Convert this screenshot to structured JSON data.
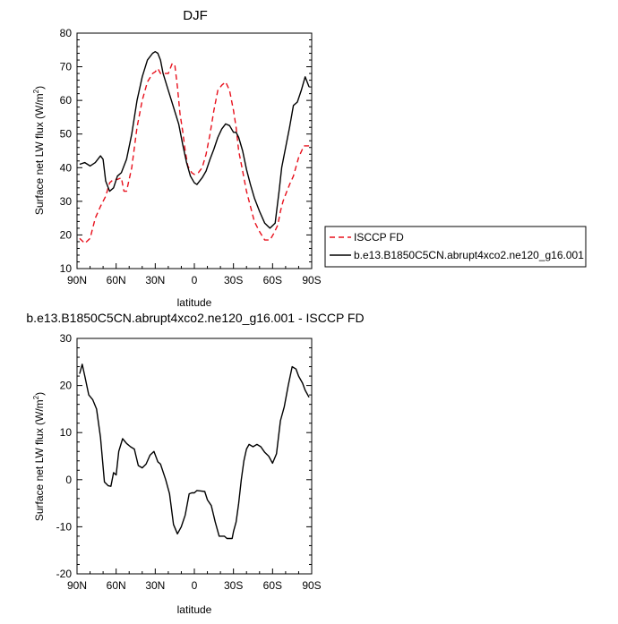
{
  "chart_data": [
    {
      "type": "line",
      "title": "DJF",
      "xlabel": "latitude",
      "ylabel": "Surface net LW flux (W/m",
      "ylabel_sup": "2",
      "ylabel_close": ")",
      "xlim": [
        90,
        -90
      ],
      "ylim": [
        10,
        80
      ],
      "xticks": [
        {
          "value": 90,
          "label": "90N"
        },
        {
          "value": 60,
          "label": "60N"
        },
        {
          "value": 30,
          "label": "30N"
        },
        {
          "value": 0,
          "label": "0"
        },
        {
          "value": -30,
          "label": "30S"
        },
        {
          "value": -60,
          "label": "60S"
        },
        {
          "value": -90,
          "label": "90S"
        }
      ],
      "yticks": [
        10,
        20,
        30,
        40,
        50,
        60,
        70,
        80
      ],
      "legend": [
        "ISCCP FD",
        "b.e13.B1850C5CN.abrupt4xco2.ne120_g16.001"
      ],
      "series": [
        {
          "name": "ISCCP FD",
          "color": "#e8101c",
          "dash": "6,4",
          "x": [
            88,
            84,
            80,
            76,
            72,
            68,
            65,
            62,
            59,
            56,
            54,
            52,
            48,
            44,
            40,
            36,
            32,
            30,
            28,
            26,
            23,
            20,
            17,
            15,
            13,
            11,
            9,
            7,
            5,
            2,
            0,
            -3,
            -6,
            -9,
            -12,
            -15,
            -18,
            -21,
            -24,
            -27,
            -30,
            -32,
            -34,
            -37,
            -40,
            -43,
            -46,
            -50,
            -54,
            -58,
            -61,
            -64,
            -66,
            -68,
            -70,
            -73,
            -76,
            -80,
            -84,
            -86,
            -88
          ],
          "y": [
            19,
            17.5,
            19,
            25,
            28.5,
            31.5,
            35.5,
            36.5,
            36.5,
            37,
            33,
            33,
            40,
            52,
            60,
            65.5,
            68,
            68.5,
            69.5,
            68,
            68,
            68,
            71,
            70.5,
            64,
            56,
            51,
            45,
            40.5,
            38.5,
            38,
            38.5,
            40,
            44,
            50,
            57,
            63,
            64.5,
            65.5,
            63,
            57,
            52,
            45,
            39,
            33,
            28.5,
            24,
            21,
            18.5,
            18.5,
            20.5,
            23,
            27,
            30,
            32,
            35,
            37.5,
            43,
            46.5,
            46.5,
            46.5
          ]
        },
        {
          "name": "b.e13.B1850C5CN.abrupt4xco2.ne120_g16.001",
          "color": "#000000",
          "dash": "",
          "x": [
            88,
            84,
            80,
            76,
            72,
            70,
            68,
            65,
            62,
            59,
            56,
            52,
            48,
            44,
            40,
            36,
            32,
            30,
            28,
            26,
            24,
            20,
            16,
            12,
            9,
            6,
            3,
            0,
            -2,
            -4,
            -6,
            -9,
            -12,
            -15,
            -18,
            -21,
            -24,
            -27,
            -30,
            -32,
            -34,
            -37,
            -40,
            -43,
            -46,
            -50,
            -54,
            -58,
            -62,
            -65,
            -67,
            -70,
            -73,
            -76,
            -79,
            -82,
            -85,
            -88
          ],
          "y": [
            41,
            41.5,
            40.5,
            41.5,
            43.5,
            42.5,
            36,
            33,
            34,
            37.5,
            38.5,
            42.5,
            50,
            60,
            67,
            72,
            74,
            74.5,
            74,
            72,
            68,
            63,
            58,
            53,
            47,
            41.5,
            37.5,
            35.5,
            35,
            36,
            37,
            39,
            42.5,
            45.5,
            49,
            51.5,
            53,
            52.5,
            50.5,
            50.5,
            49,
            45,
            39.5,
            35,
            31,
            27,
            23.5,
            22,
            23.5,
            33,
            40,
            46,
            52,
            58.5,
            59.5,
            63,
            67,
            64
          ]
        }
      ]
    },
    {
      "type": "line",
      "title": "b.e13.B1850C5CN.abrupt4xco2.ne120_g16.001 - ISCCP FD",
      "xlabel": "latitude",
      "ylabel": "Surface net LW flux (W/m",
      "ylabel_sup": "2",
      "ylabel_close": ")",
      "xlim": [
        90,
        -90
      ],
      "ylim": [
        -20,
        30
      ],
      "xticks": [
        {
          "value": 90,
          "label": "90N"
        },
        {
          "value": 60,
          "label": "60N"
        },
        {
          "value": 30,
          "label": "30N"
        },
        {
          "value": 0,
          "label": "0"
        },
        {
          "value": -30,
          "label": "30S"
        },
        {
          "value": -60,
          "label": "60S"
        },
        {
          "value": -90,
          "label": "90S"
        }
      ],
      "yticks": [
        -20,
        -10,
        0,
        10,
        20,
        30
      ],
      "series": [
        {
          "name": "b.e13.B1850C5CN.abrupt4xco2.ne120_g16.001 - ISCCP FD",
          "color": "#000000",
          "dash": "",
          "x": [
            88,
            86,
            84,
            81,
            78,
            75,
            72,
            69,
            66,
            64,
            62,
            60,
            58,
            55,
            52,
            49,
            46,
            43,
            40,
            37,
            34,
            31,
            28,
            26,
            22,
            19,
            16,
            13,
            10,
            7,
            4,
            2,
            0,
            -2,
            -5,
            -8,
            -10,
            -13,
            -16,
            -19,
            -21,
            -23,
            -25,
            -27,
            -29,
            -30,
            -32,
            -34,
            -36,
            -38,
            -40,
            -42,
            -45,
            -48,
            -51,
            -54,
            -57,
            -60,
            -63,
            -66,
            -69,
            -72,
            -75,
            -78,
            -80,
            -83,
            -85,
            -88
          ],
          "y": [
            22.5,
            24.5,
            22,
            18,
            17,
            15,
            9,
            -0.5,
            -1.3,
            -1.4,
            1.5,
            1,
            6,
            8.7,
            7.7,
            7,
            6.5,
            3,
            2.5,
            3.3,
            5.2,
            6,
            3.8,
            3.3,
            0,
            -3,
            -9.5,
            -11.5,
            -10,
            -7.5,
            -3,
            -2.8,
            -2.8,
            -2.3,
            -2.4,
            -2.5,
            -4.3,
            -5.5,
            -9,
            -12,
            -12,
            -12,
            -12.5,
            -12.5,
            -12.5,
            -11,
            -9,
            -5,
            0,
            4,
            6.5,
            7.5,
            7,
            7.5,
            7,
            5.8,
            5,
            3.5,
            5.5,
            12.5,
            15.5,
            20,
            24,
            23.5,
            22,
            20.5,
            19,
            17.5
          ]
        }
      ]
    }
  ]
}
